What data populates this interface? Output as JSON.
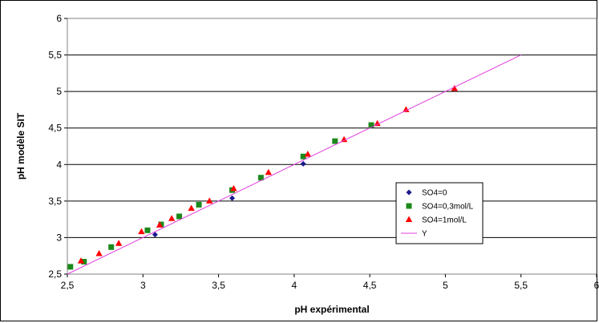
{
  "chart_data": {
    "type": "scatter",
    "title": "",
    "xlabel": "pH expérimental",
    "ylabel": "pH modèle SIT",
    "xlim": [
      2.5,
      6
    ],
    "ylim": [
      2.5,
      6
    ],
    "xticks": [
      "2,5",
      "3",
      "3,5",
      "4",
      "4,5",
      "5",
      "5,5",
      "6"
    ],
    "yticks": [
      "2,5",
      "3",
      "3,5",
      "4",
      "4,5",
      "5",
      "5,5",
      "6"
    ],
    "grid": "horizontal",
    "legend_position": "right",
    "series": [
      {
        "name": "SO4=0",
        "marker": "diamond",
        "color": "#1a1a8c",
        "points": [
          [
            3.08,
            3.04
          ],
          [
            3.59,
            3.54
          ],
          [
            4.06,
            4.01
          ]
        ]
      },
      {
        "name": "SO4=0,3mol/L",
        "marker": "square",
        "color": "#1b8a1b",
        "points": [
          [
            2.52,
            2.6
          ],
          [
            2.61,
            2.67
          ],
          [
            2.79,
            2.87
          ],
          [
            3.03,
            3.1
          ],
          [
            3.12,
            3.18
          ],
          [
            3.24,
            3.29
          ],
          [
            3.37,
            3.45
          ],
          [
            3.59,
            3.65
          ],
          [
            3.78,
            3.82
          ],
          [
            4.06,
            4.11
          ],
          [
            4.27,
            4.32
          ],
          [
            4.51,
            4.54
          ]
        ]
      },
      {
        "name": "SO4=1mol/L",
        "marker": "triangle",
        "color": "#ff0000",
        "points": [
          [
            2.59,
            2.68
          ],
          [
            2.71,
            2.78
          ],
          [
            2.84,
            2.92
          ],
          [
            2.99,
            3.08
          ],
          [
            3.11,
            3.17
          ],
          [
            3.19,
            3.26
          ],
          [
            3.32,
            3.4
          ],
          [
            3.44,
            3.5
          ],
          [
            3.6,
            3.67
          ],
          [
            3.83,
            3.89
          ],
          [
            4.09,
            4.14
          ],
          [
            4.33,
            4.34
          ],
          [
            4.55,
            4.56
          ],
          [
            4.74,
            4.75
          ],
          [
            5.06,
            5.04
          ]
        ]
      },
      {
        "name": "Y",
        "marker": "line",
        "color": "#e040e0",
        "points": [
          [
            2.5,
            2.5
          ],
          [
            5.5,
            5.5
          ]
        ]
      }
    ]
  }
}
